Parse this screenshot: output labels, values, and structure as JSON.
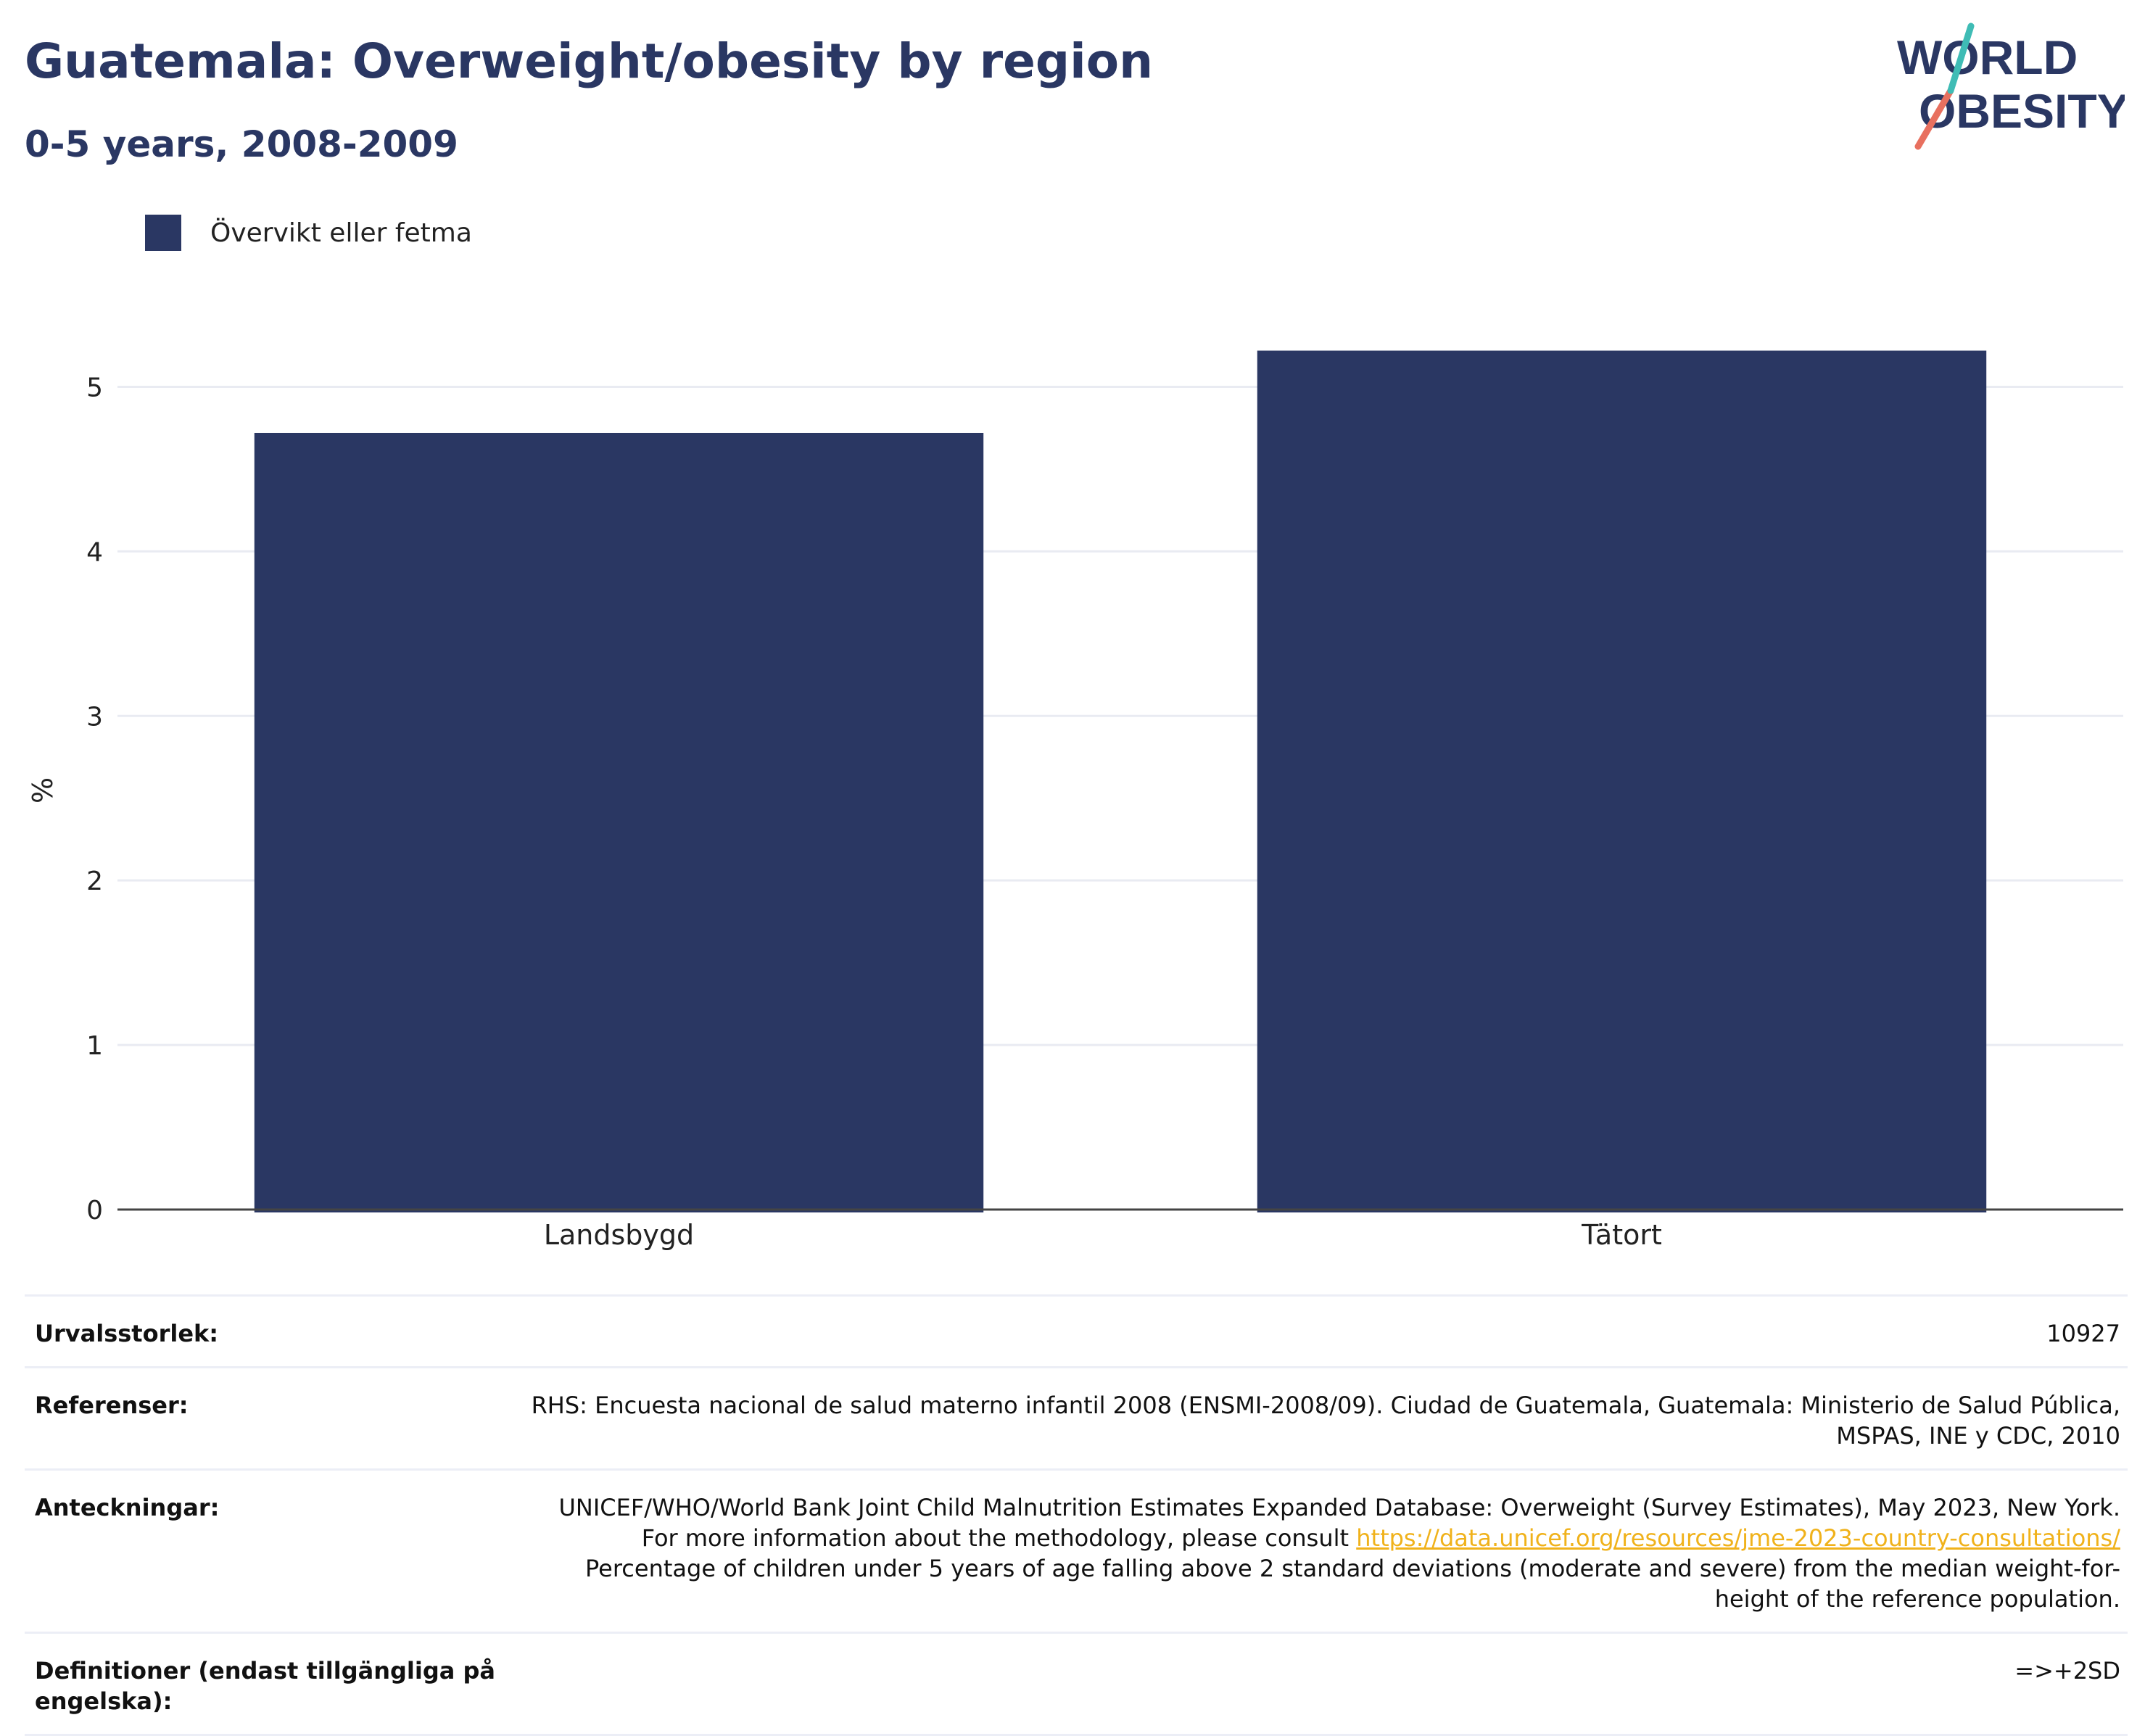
{
  "header": {
    "title": "Guatemala: Overweight/obesity by region",
    "subtitle": "0-5 years, 2008-2009"
  },
  "logo": {
    "line1": "WORLD",
    "line2": "OBESITY"
  },
  "legend": {
    "label": "Övervikt eller fetma"
  },
  "colors": {
    "bar": "#2a3763",
    "text": "#2a3763",
    "grid": "#e9ebf2",
    "link": "#f0b21b"
  },
  "chart_data": {
    "type": "bar",
    "categories": [
      "Landsbygd",
      "Tätort"
    ],
    "series": [
      {
        "name": "Övervikt eller fetma",
        "values": [
          4.72,
          5.22
        ]
      }
    ],
    "ylabel": "%",
    "xlabel": "",
    "ylim": [
      0,
      5.5
    ],
    "yticks": [
      0,
      1,
      2,
      3,
      4,
      5
    ],
    "grid": true,
    "legend_position": "top-left"
  },
  "notes": {
    "sample_size": {
      "label": "Urvalsstorlek:",
      "value": "10927"
    },
    "references": {
      "label": "Referenser:",
      "value": "RHS: Encuesta nacional de salud materno infantil 2008 (ENSMI-2008/09). Ciudad de Guatemala, Guatemala: Ministerio de Salud Pública, MSPAS, INE y CDC, 2010"
    },
    "annotations": {
      "label": "Anteckningar:",
      "text1": "UNICEF/WHO/World Bank Joint Child Malnutrition Estimates Expanded Database: Overweight (Survey Estimates), May 2023, New York. For more information about the methodology, please consult",
      "link": "https://data.unicef.org/resources/jme-2023-country-consultations/",
      "text2": "Percentage of children under 5 years of age falling above 2 standard deviations (moderate and severe) from the median weight-for-height of the reference population."
    },
    "definitions": {
      "label": "Definitioner (endast tillgängliga på engelska):",
      "value": "=>+2SD"
    }
  }
}
